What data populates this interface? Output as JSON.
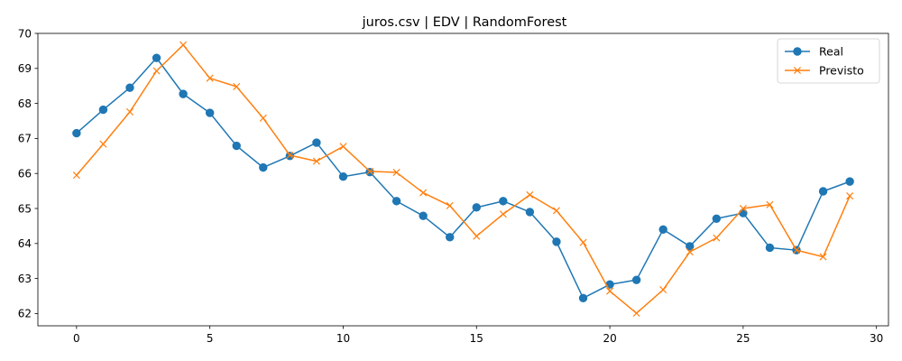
{
  "chart_data": {
    "type": "line",
    "title": "juros.csv | EDV | RandomForest",
    "xlabel": "",
    "ylabel": "",
    "xlim": [
      -1.45,
      30.45
    ],
    "ylim": [
      61.65,
      70.0
    ],
    "xticks": [
      0,
      5,
      10,
      15,
      20,
      25,
      30
    ],
    "yticks": [
      62,
      63,
      64,
      65,
      66,
      67,
      68,
      69,
      70
    ],
    "grid": false,
    "legend_position": "top-right",
    "x": [
      0,
      1,
      2,
      3,
      4,
      5,
      6,
      7,
      8,
      9,
      10,
      11,
      12,
      13,
      14,
      15,
      16,
      17,
      18,
      19,
      20,
      21,
      22,
      23,
      24,
      25,
      26,
      27,
      28,
      29
    ],
    "series": [
      {
        "name": "Real",
        "color": "#1f77b4",
        "marker": "circle",
        "values": [
          67.15,
          67.82,
          68.45,
          69.3,
          68.27,
          67.73,
          66.79,
          66.17,
          66.5,
          66.88,
          65.91,
          66.04,
          65.21,
          64.79,
          64.18,
          65.03,
          65.21,
          64.9,
          64.05,
          62.44,
          62.83,
          62.96,
          64.4,
          63.92,
          64.71,
          64.87,
          63.88,
          63.81,
          65.49,
          65.77
        ]
      },
      {
        "name": "Previsto",
        "color": "#ff7f0e",
        "marker": "x",
        "values": [
          65.95,
          66.84,
          67.76,
          68.93,
          69.67,
          68.72,
          68.48,
          67.58,
          66.52,
          66.35,
          66.77,
          66.06,
          66.03,
          65.45,
          65.08,
          64.21,
          64.84,
          65.39,
          64.94,
          64.03,
          62.64,
          62.01,
          62.68,
          63.76,
          64.16,
          65.0,
          65.11,
          63.81,
          63.62,
          65.36
        ]
      }
    ]
  }
}
